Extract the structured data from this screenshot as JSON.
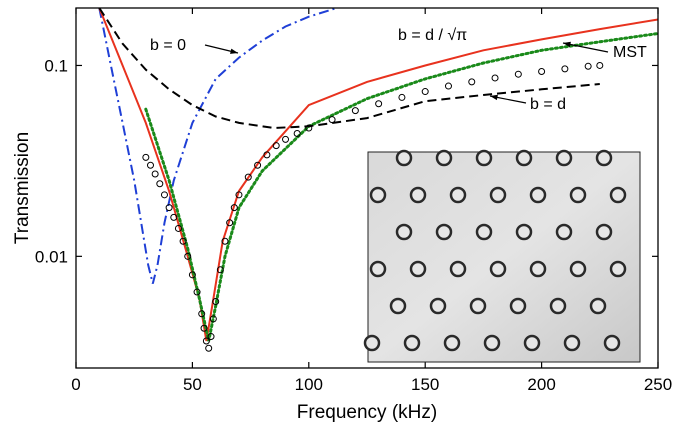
{
  "chart_data": {
    "type": "line",
    "log_y": true,
    "xlabel": "Frequency (kHz)",
    "ylabel": "Transmission",
    "xlim": [
      0,
      250
    ],
    "ylim": [
      0.0026,
      0.2
    ],
    "xticks": [
      0,
      50,
      100,
      150,
      200,
      250
    ],
    "yticks": [
      0.01,
      0.1
    ],
    "series": [
      {
        "name": "b = 0",
        "color": "#1f3fd6",
        "style": "dashdot",
        "x": [
          10,
          15,
          20,
          25,
          28,
          31,
          33,
          35,
          38,
          42,
          50,
          60,
          70,
          80,
          90,
          100,
          112
        ],
        "values": [
          0.2,
          0.1,
          0.05,
          0.025,
          0.015,
          0.009,
          0.0072,
          0.009,
          0.015,
          0.025,
          0.05,
          0.085,
          0.11,
          0.135,
          0.16,
          0.18,
          0.2
        ]
      },
      {
        "name": "b = d / √π",
        "color": "#e8321e",
        "style": "solid",
        "x": [
          10,
          20,
          30,
          40,
          48,
          53,
          56,
          59,
          63,
          70,
          80,
          100,
          125,
          150,
          175,
          200,
          225,
          250
        ],
        "values": [
          0.2,
          0.1,
          0.05,
          0.022,
          0.01,
          0.006,
          0.0036,
          0.006,
          0.012,
          0.022,
          0.033,
          0.062,
          0.082,
          0.1,
          0.12,
          0.137,
          0.155,
          0.174
        ]
      },
      {
        "name": "MST",
        "color": "#1a8a1a",
        "style": "dotted",
        "x": [
          30,
          40,
          48,
          53,
          57,
          60,
          64,
          70,
          80,
          100,
          125,
          150,
          175,
          200,
          225,
          250
        ],
        "values": [
          0.059,
          0.025,
          0.011,
          0.006,
          0.0036,
          0.0055,
          0.01,
          0.018,
          0.028,
          0.048,
          0.067,
          0.085,
          0.103,
          0.12,
          0.133,
          0.147
        ]
      },
      {
        "name": "b = d",
        "color": "#000000",
        "style": "dashed",
        "x": [
          10,
          20,
          30,
          40,
          50,
          60,
          70,
          85,
          100,
          125,
          150,
          175,
          200,
          225
        ],
        "values": [
          0.2,
          0.13,
          0.095,
          0.075,
          0.062,
          0.054,
          0.05,
          0.047,
          0.048,
          0.053,
          0.065,
          0.07,
          0.075,
          0.08
        ]
      },
      {
        "color": "#000000",
        "style": "circles",
        "x": [
          30,
          32,
          34,
          36,
          38,
          40,
          42,
          44,
          46,
          48,
          50,
          52,
          54,
          55,
          56,
          57,
          58,
          59,
          60,
          62,
          64,
          66,
          68,
          70,
          74,
          78,
          82,
          86,
          90,
          95,
          100,
          110,
          120,
          130,
          140,
          150,
          160,
          170,
          180,
          190,
          200,
          210,
          220,
          225
        ],
        "values": [
          0.033,
          0.03,
          0.027,
          0.024,
          0.021,
          0.018,
          0.016,
          0.014,
          0.012,
          0.01,
          0.008,
          0.0065,
          0.005,
          0.0042,
          0.0036,
          0.0033,
          0.0038,
          0.0047,
          0.0058,
          0.0085,
          0.012,
          0.015,
          0.018,
          0.021,
          0.026,
          0.03,
          0.034,
          0.038,
          0.041,
          0.044,
          0.047,
          0.052,
          0.058,
          0.063,
          0.068,
          0.073,
          0.078,
          0.082,
          0.086,
          0.09,
          0.093,
          0.096,
          0.099,
          0.1
        ]
      }
    ]
  }
}
